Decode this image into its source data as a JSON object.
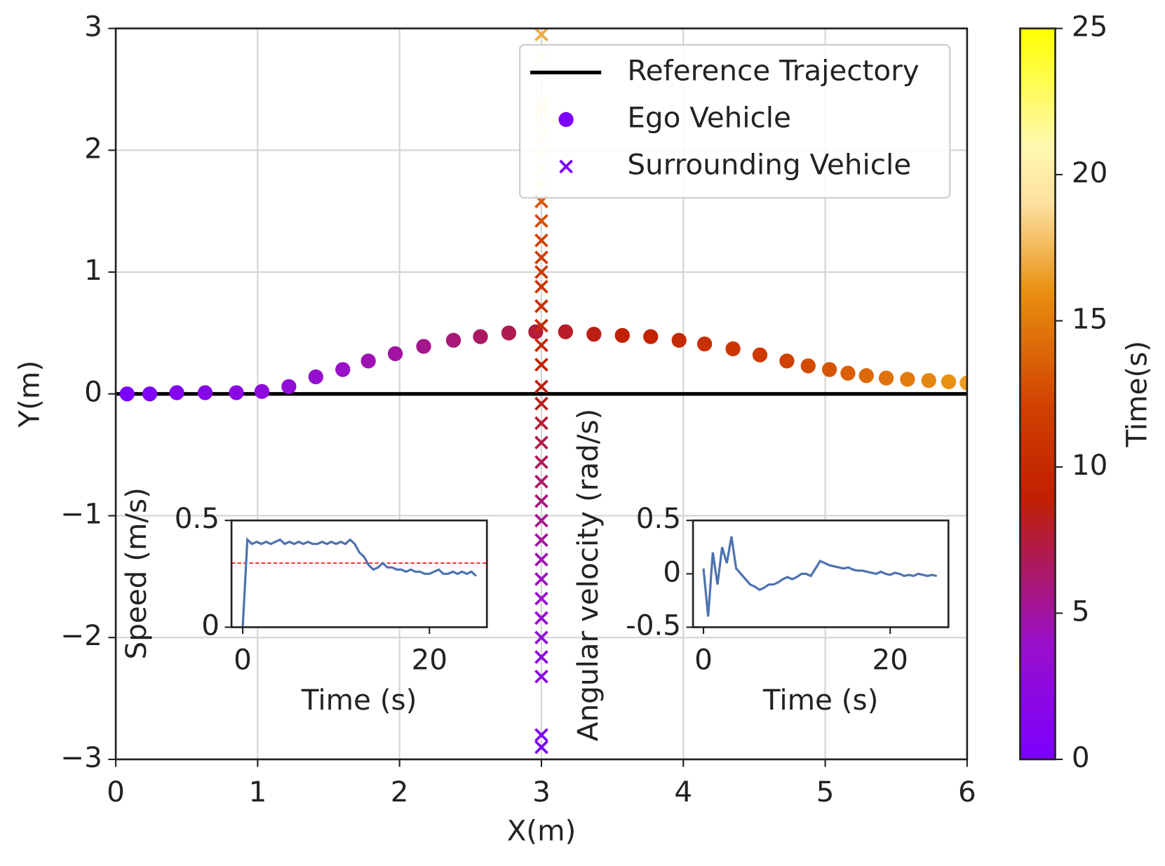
{
  "chart_data": [
    {
      "type": "scatter",
      "xlabel": "X(m)",
      "ylabel": "Y(m)",
      "xlim": [
        0,
        6
      ],
      "ylim": [
        -3,
        3
      ],
      "xticks": [
        0,
        1,
        2,
        3,
        4,
        5,
        6
      ],
      "yticks": [
        {
          "value": -3,
          "label": "−3"
        },
        {
          "value": -2,
          "label": "−2"
        },
        {
          "value": -1,
          "label": "−1"
        },
        0,
        1,
        2,
        3
      ],
      "grid": true,
      "legend": "upper right",
      "series": [
        {
          "name": "Reference Trajectory",
          "marker": "line",
          "color": "#000000",
          "x": [
            0,
            6
          ],
          "values": [
            0,
            0
          ]
        },
        {
          "name": "Ego Vehicle",
          "marker": "o",
          "color": "#7b00ff",
          "x": [
            0.08,
            0.24,
            0.43,
            0.63,
            0.85,
            1.03,
            1.22,
            1.41,
            1.6,
            1.78,
            1.97,
            2.17,
            2.38,
            2.57,
            2.77,
            2.96,
            3.17,
            3.37,
            3.57,
            3.77,
            3.97,
            4.15,
            4.35,
            4.54,
            4.73,
            4.88,
            5.03,
            5.16,
            5.29,
            5.43,
            5.58,
            5.73,
            5.87,
            6.0
          ],
          "values": [
            0,
            0,
            0.01,
            0.01,
            0.01,
            0.02,
            0.06,
            0.14,
            0.2,
            0.27,
            0.33,
            0.39,
            0.44,
            0.47,
            0.5,
            0.51,
            0.51,
            0.49,
            0.48,
            0.47,
            0.44,
            0.41,
            0.37,
            0.32,
            0.27,
            0.23,
            0.2,
            0.17,
            0.15,
            0.13,
            0.12,
            0.11,
            0.1,
            0.09
          ],
          "time": [
            0,
            0.5,
            1,
            1.5,
            2,
            2.5,
            3,
            3.5,
            4,
            4.5,
            5,
            5.5,
            6,
            6.5,
            7,
            7.5,
            8,
            8.5,
            9,
            9.5,
            10,
            10.5,
            11,
            11.5,
            12,
            12.5,
            13,
            13.5,
            14,
            14.5,
            15,
            15.5,
            16,
            16.5
          ]
        },
        {
          "name": "Surrounding Vehicle",
          "marker": "x",
          "color": "#7b00ff",
          "x": [
            3,
            3,
            3,
            3,
            3,
            3,
            3,
            3,
            3,
            3,
            3,
            3,
            3,
            3,
            3,
            3,
            3,
            3,
            3,
            3,
            3,
            3,
            3,
            3,
            3,
            3,
            3,
            3,
            3,
            3,
            3,
            3,
            3,
            3,
            3,
            3,
            3
          ],
          "values": [
            -2.9,
            -2.8,
            -2.32,
            -2.16,
            -2.0,
            -1.84,
            -1.68,
            -1.52,
            -1.36,
            -1.2,
            -1.04,
            -0.88,
            -0.72,
            -0.56,
            -0.4,
            -0.24,
            -0.08,
            0.06,
            0.24,
            0.4,
            0.56,
            0.72,
            0.88,
            1.0,
            1.12,
            1.26,
            1.42,
            1.58,
            1.72,
            1.84,
            1.98,
            2.1,
            2.22,
            2.34,
            2.4,
            2.76,
            2.95
          ],
          "time": [
            0.3,
            0.6,
            2,
            2.4,
            2.9,
            3.3,
            3.8,
            4.2,
            4.6,
            5.1,
            5.5,
            6,
            6.4,
            6.8,
            7.3,
            7.7,
            8.2,
            8.6,
            9,
            9.5,
            9.9,
            10.4,
            10.8,
            11.2,
            11.7,
            12.1,
            12.6,
            13,
            20,
            20,
            20,
            20,
            20,
            20,
            20,
            20,
            17
          ]
        }
      ],
      "colorbar": {
        "label": "Time(s)",
        "lim": [
          0,
          25
        ],
        "ticks": [
          0,
          5,
          10,
          15,
          20,
          25
        ],
        "stops": [
          [
            0,
            "#7b00ff"
          ],
          [
            4,
            "#9a10c8"
          ],
          [
            7,
            "#b01a50"
          ],
          [
            9,
            "#c02000"
          ],
          [
            12,
            "#d04000"
          ],
          [
            16,
            "#e89010"
          ],
          [
            19,
            "#fce0a0"
          ],
          [
            21,
            "#fff8b0"
          ],
          [
            25,
            "#ffff00"
          ]
        ]
      }
    },
    {
      "type": "line",
      "xlabel": "Time (s)",
      "ylabel": "Speed (m/s)",
      "xlim": [
        -1.2,
        26.16
      ],
      "ylim": [
        0,
        0.5
      ],
      "xticks": [
        0,
        20
      ],
      "yticks": [
        0,
        0.5
      ],
      "hline": {
        "value": 0.3,
        "color": "#ff0000"
      },
      "series": [
        {
          "color": "#4c72b0",
          "x": [
            0,
            0.5,
            1,
            1.5,
            2,
            2.5,
            3,
            3.5,
            4,
            4.5,
            5,
            5.5,
            6,
            6.5,
            7,
            7.5,
            8,
            8.5,
            9,
            9.5,
            10,
            10.5,
            11,
            11.5,
            12,
            12.5,
            13,
            13.5,
            14,
            14.5,
            15,
            15.5,
            16,
            16.5,
            17,
            17.5,
            18,
            18.5,
            19,
            19.5,
            20,
            20.5,
            21,
            21.5,
            22,
            22.5,
            23,
            23.5,
            24,
            24.5,
            25
          ],
          "values": [
            0,
            0.41,
            0.39,
            0.4,
            0.39,
            0.4,
            0.39,
            0.4,
            0.41,
            0.39,
            0.4,
            0.39,
            0.4,
            0.39,
            0.4,
            0.39,
            0.39,
            0.4,
            0.39,
            0.4,
            0.39,
            0.4,
            0.39,
            0.41,
            0.39,
            0.35,
            0.33,
            0.29,
            0.27,
            0.28,
            0.3,
            0.28,
            0.28,
            0.27,
            0.27,
            0.26,
            0.27,
            0.26,
            0.26,
            0.25,
            0.25,
            0.26,
            0.27,
            0.25,
            0.25,
            0.26,
            0.25,
            0.26,
            0.25,
            0.26,
            0.24
          ]
        }
      ]
    },
    {
      "type": "line",
      "xlabel": "Time (s)",
      "ylabel": "Angular velocity (rad/s)",
      "xlim": [
        -1.12,
        26.24
      ],
      "ylim": [
        -0.5,
        0.5
      ],
      "xticks": [
        0,
        20
      ],
      "yticks": [
        -0.5,
        0,
        0.5
      ],
      "series": [
        {
          "color": "#4c72b0",
          "x": [
            0,
            0.5,
            1,
            1.5,
            2,
            2.5,
            3,
            3.5,
            4,
            4.5,
            5,
            5.5,
            6,
            6.5,
            7,
            7.5,
            8,
            8.5,
            9,
            9.5,
            10,
            10.5,
            11,
            11.5,
            12,
            12.5,
            13,
            13.5,
            14,
            14.5,
            15,
            15.5,
            16,
            16.5,
            17,
            17.5,
            18,
            18.5,
            19,
            19.5,
            20,
            20.5,
            21,
            21.5,
            22,
            22.5,
            23,
            23.5,
            24,
            24.5,
            25
          ],
          "values": [
            0.05,
            -0.4,
            0.2,
            -0.1,
            0.25,
            0.1,
            0.35,
            0.05,
            0,
            -0.05,
            -0.1,
            -0.12,
            -0.15,
            -0.13,
            -0.1,
            -0.1,
            -0.08,
            -0.05,
            -0.03,
            -0.05,
            -0.03,
            0,
            0,
            -0.02,
            0.05,
            0.12,
            0.1,
            0.08,
            0.07,
            0.06,
            0.05,
            0.06,
            0.04,
            0.03,
            0.03,
            0.02,
            0.01,
            0,
            0.02,
            0,
            -0.01,
            0.01,
            0,
            -0.02,
            -0.01,
            -0.02,
            0,
            -0.01,
            -0.02,
            -0.01,
            -0.02
          ]
        }
      ]
    }
  ]
}
